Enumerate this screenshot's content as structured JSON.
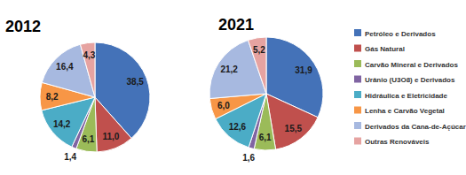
{
  "chart_data": [
    {
      "type": "pie",
      "title": "2012",
      "categories": [
        "Petróleo e Derivados",
        "Gás Natural",
        "Carvão Mineral e Derivados",
        "Urânio (U3O8) e Derivados",
        "Hidráulica e Eletricidade",
        "Lenha e Carvão Vegetal",
        "Derivados da Cana-de-Açúcar",
        "Outras Renováveis"
      ],
      "values": [
        38.5,
        11.0,
        6.1,
        1.4,
        14.2,
        8.2,
        16.4,
        4.3
      ],
      "value_labels": [
        "38,5",
        "11,0",
        "6,1",
        "1,4",
        "14,2",
        "8,2",
        "16,4",
        "4,3"
      ],
      "colors": [
        "#4472b8",
        "#c0504d",
        "#9bbb59",
        "#8064a2",
        "#4bacc6",
        "#f79646",
        "#a7b9e0",
        "#e6a3a1"
      ],
      "data_labels": true,
      "legend": "right"
    },
    {
      "type": "pie",
      "title": "2021",
      "categories": [
        "Petróleo e Derivados",
        "Gás Natural",
        "Carvão Mineral e Derivados",
        "Urânio (U3O8) e Derivados",
        "Hidráulica e Eletricidade",
        "Lenha e Carvão Vegetal",
        "Derivados da Cana-de-Açúcar",
        "Outras Renováveis"
      ],
      "values": [
        31.9,
        15.5,
        6.1,
        1.6,
        12.6,
        6.0,
        21.2,
        5.2
      ],
      "value_labels": [
        "31,9",
        "15,5",
        "6,1",
        "1,6",
        "12,6",
        "6,0",
        "21,2",
        "5,2"
      ],
      "colors": [
        "#4472b8",
        "#c0504d",
        "#9bbb59",
        "#8064a2",
        "#4bacc6",
        "#f79646",
        "#a7b9e0",
        "#e6a3a1"
      ],
      "data_labels": true
    }
  ]
}
